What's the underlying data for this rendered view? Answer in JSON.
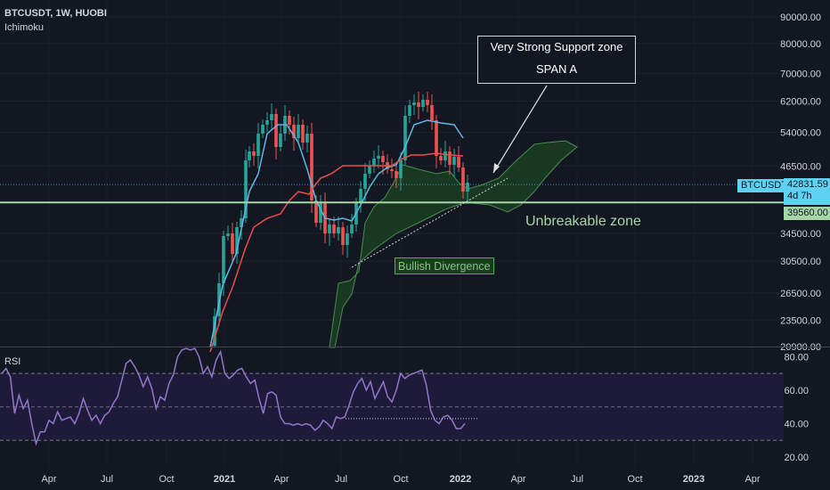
{
  "header": {
    "symbol_line": "BTCUSDT, 1W, HUOBI",
    "indicator": "Ichimoku"
  },
  "annotations": {
    "callout_line1": "Very Strong Support zone",
    "callout_line2": "SPAN A",
    "zone_label": "Unbreakable zone",
    "divergence_label": "Bullish Divergence"
  },
  "price_tags": {
    "symbol": "BTCUSDT",
    "last_price": "42831.59",
    "countdown": "4d 7h",
    "level": "39560.00"
  },
  "rsi_label": "RSI",
  "colors": {
    "background": "#131722",
    "candle_up": "#26a69a",
    "candle_down": "#ef5350",
    "tenkan": "#5cb8e4",
    "kijun": "#ef4b4b",
    "cloud": "#1b3c22",
    "cloud_edge": "#4a8c4f",
    "level_line": "#a5d6a7",
    "rsi_line": "#9575cd",
    "rsi_band": "#1e1b3a",
    "last_price_tag": "#5ed2f0"
  },
  "chart_data": [
    {
      "type": "candlestick",
      "title": "BTCUSDT, 1W, HUOBI",
      "y_scale": "log",
      "ylim": [
        20900,
        90000
      ],
      "y_ticks": [
        "90000.00",
        "80000.00",
        "70000.00",
        "62000.00",
        "54000.00",
        "46500.00",
        "39560.00",
        "34500.00",
        "30500.00",
        "26500.00",
        "23500.00",
        "20900.00"
      ],
      "x_ticks": [
        "Apr",
        "Jul",
        "Oct",
        "2021",
        "Apr",
        "Jul",
        "Oct",
        "2022",
        "Apr",
        "Jul",
        "Oct",
        "2023",
        "Apr"
      ],
      "horizontal_level": 39560,
      "last_price": 42831.59,
      "series": [
        {
          "name": "BTCUSDT"
        },
        {
          "name": "Ichimoku"
        }
      ]
    },
    {
      "type": "line",
      "title": "RSI",
      "ylim": [
        20,
        85
      ],
      "y_ticks": [
        "80.00",
        "60.00",
        "40.00",
        "20.00"
      ],
      "band": [
        30,
        70
      ],
      "rsi_values": [
        70,
        73,
        68,
        46,
        57,
        49,
        54,
        40,
        28,
        35,
        35,
        42,
        40,
        47,
        42,
        43,
        44,
        40,
        46,
        55,
        48,
        42,
        45,
        40,
        45,
        47,
        52,
        56,
        66,
        76,
        78,
        74,
        69,
        62,
        68,
        61,
        49,
        56,
        54,
        64,
        69,
        80,
        84,
        86,
        84,
        90,
        80,
        70,
        74,
        68,
        78,
        83,
        70,
        67,
        69,
        72,
        73,
        68,
        64,
        66,
        55,
        46,
        58,
        59,
        57,
        44,
        40,
        40,
        39,
        40,
        39,
        40,
        39,
        36,
        38,
        42,
        40,
        37,
        44,
        43,
        44,
        51,
        59,
        64,
        67,
        60,
        65,
        55,
        60,
        65,
        56,
        53,
        60,
        70,
        67,
        69,
        70,
        71,
        72,
        63,
        48,
        42,
        40,
        44,
        45,
        42,
        37,
        37,
        40
      ],
      "divergence_line": [
        43,
        43
      ]
    }
  ]
}
